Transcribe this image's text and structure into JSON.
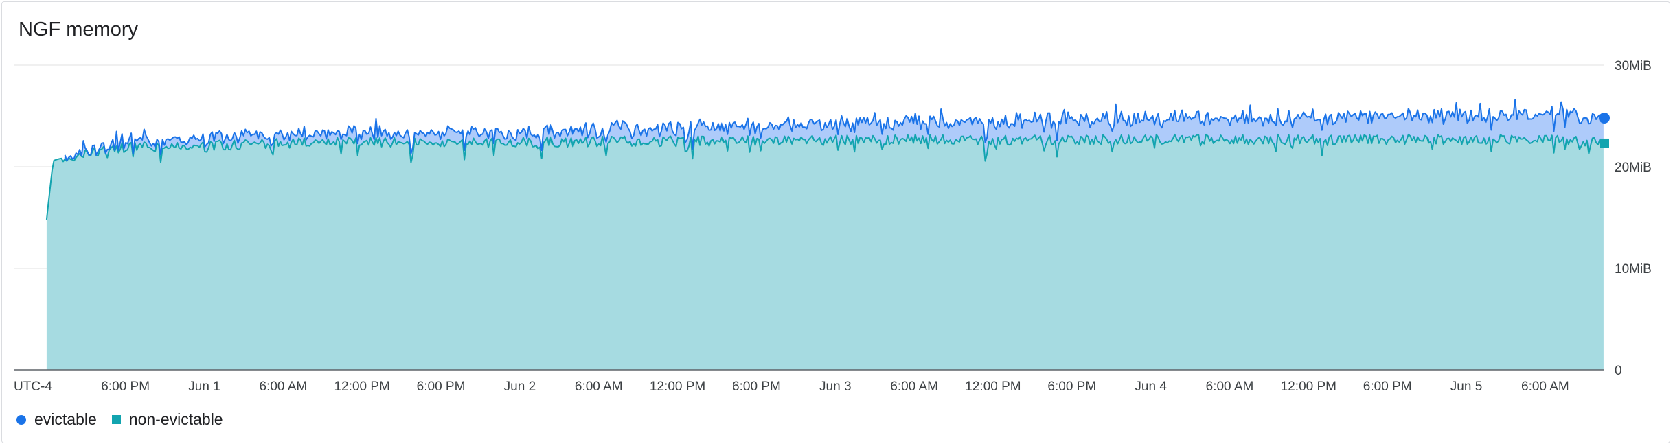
{
  "title": "NGF memory",
  "timezone_label": "UTC-4",
  "legend": {
    "evictable": "evictable",
    "non_evictable": "non-evictable"
  },
  "colors": {
    "evictable_line": "#1a73e8",
    "evictable_fill": "#aecbfa",
    "non_evictable_line": "#12a4af",
    "non_evictable_fill": "#a6dbe1",
    "gridline": "#e0e0e0",
    "axis": "#5f6368"
  },
  "chart_data": {
    "type": "area",
    "stacked": true,
    "title": "NGF memory",
    "y_unit": "MiB",
    "ylim": [
      0,
      30
    ],
    "y_ticks": [
      {
        "value": 0,
        "label": "0"
      },
      {
        "value": 10,
        "label": "10MiB"
      },
      {
        "value": 20,
        "label": "20MiB"
      },
      {
        "value": 30,
        "label": "30MiB"
      }
    ],
    "x_start": "May 31 10:00 AM",
    "x_end": "Jun 5 10:00 AM",
    "x_tick_labels": [
      "6:00 PM",
      "Jun 1",
      "6:00 AM",
      "12:00 PM",
      "6:00 PM",
      "Jun 2",
      "6:00 AM",
      "12:00 PM",
      "6:00 PM",
      "Jun 3",
      "6:00 AM",
      "12:00 PM",
      "6:00 PM",
      "Jun 4",
      "6:00 AM",
      "12:00 PM",
      "6:00 PM",
      "Jun 5",
      "6:00 AM"
    ],
    "x_tick_hours": [
      6,
      12,
      18,
      24,
      30,
      36,
      42,
      48,
      54,
      60,
      66,
      72,
      78,
      84,
      90,
      96,
      102,
      108,
      114
    ],
    "x_range_hours": [
      -2.5,
      118.5
    ],
    "grid": true,
    "legend_position": "bottom-left",
    "series": [
      {
        "name": "non-evictable",
        "hours": [
          0,
          0.5,
          1,
          2,
          4,
          6,
          12,
          18,
          24,
          30,
          36,
          42,
          48,
          54,
          60,
          66,
          72,
          78,
          84,
          90,
          96,
          102,
          108,
          114,
          118.5
        ],
        "values": [
          14.8,
          20.6,
          20.8,
          21.0,
          21.6,
          21.9,
          22.1,
          22.3,
          22.4,
          22.4,
          22.4,
          22.5,
          22.5,
          22.6,
          22.6,
          22.7,
          22.6,
          22.7,
          22.7,
          22.7,
          22.7,
          22.7,
          22.7,
          22.7,
          22.3
        ]
      },
      {
        "name": "evictable",
        "hours": [
          0,
          0.5,
          1,
          2,
          4,
          6,
          12,
          18,
          24,
          30,
          36,
          42,
          48,
          54,
          60,
          66,
          72,
          78,
          84,
          90,
          96,
          102,
          108,
          114,
          118.5
        ],
        "values": [
          0,
          0,
          0,
          0,
          0.3,
          0.5,
          0.7,
          0.8,
          0.8,
          0.9,
          0.9,
          1.0,
          1.1,
          1.4,
          1.5,
          1.6,
          1.7,
          1.9,
          1.9,
          2.0,
          2.1,
          2.2,
          2.3,
          2.4,
          2.5
        ]
      }
    ]
  }
}
